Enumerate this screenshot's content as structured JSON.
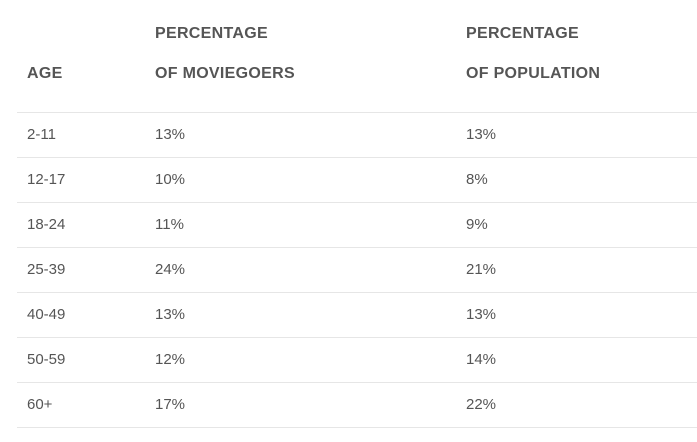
{
  "table": {
    "headers": {
      "age": "AGE",
      "moviegoers_line1": "PERCENTAGE",
      "moviegoers_line2": "OF MOVIEGOERS",
      "population_line1": "PERCENTAGE",
      "population_line2": "OF POPULATION"
    },
    "rows": [
      {
        "age": "2-11",
        "moviegoers": "13%",
        "population": "13%"
      },
      {
        "age": "12-17",
        "moviegoers": "10%",
        "population": "8%"
      },
      {
        "age": "18-24",
        "moviegoers": "11%",
        "population": "9%"
      },
      {
        "age": "25-39",
        "moviegoers": "24%",
        "population": "21%"
      },
      {
        "age": "40-49",
        "moviegoers": "13%",
        "population": "13%"
      },
      {
        "age": "50-59",
        "moviegoers": "12%",
        "population": "14%"
      },
      {
        "age": "60+",
        "moviegoers": "17%",
        "population": "22%"
      }
    ]
  }
}
